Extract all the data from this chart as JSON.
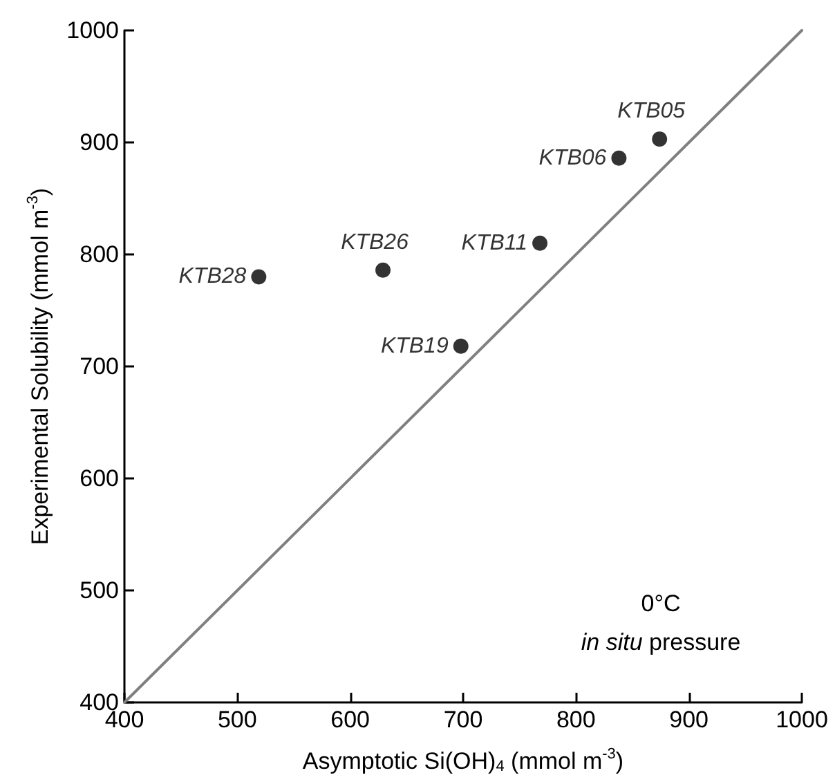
{
  "chart_data": {
    "type": "scatter",
    "xlabel": "Asymptotic Si(OH)$_{4}$ (mmol m$^{-3}$)",
    "ylabel": "Experimental Solubility (mmol m$^{-3}$)",
    "x": [
      874,
      838,
      768,
      629,
      519,
      698
    ],
    "series": [
      {
        "color": "#000000",
        "marker": "circle",
        "values": [
          903,
          886,
          810,
          786,
          780,
          718
        ]
      },
      {
        "type": "line",
        "color": "#808080",
        "marker": "none",
        "line_style": "solid",
        "x": [
          400,
          1000
        ],
        "values": [
          400,
          1000
        ]
      }
    ],
    "xlim": [
      400,
      1000
    ],
    "ylim": [
      400,
      1000
    ],
    "xticks": [
      400,
      500,
      600,
      700,
      800,
      900,
      1000
    ],
    "yticks": [
      400,
      500,
      600,
      700,
      800,
      900,
      1000
    ],
    "grid": false,
    "annotations": [
      {
        "text": "KTB05",
        "x": 874,
        "y": 903
      },
      {
        "text": "KTB06",
        "x": 838,
        "y": 886
      },
      {
        "text": "KTB11",
        "x": 768,
        "y": 810
      },
      {
        "text": "KTB26",
        "x": 629,
        "y": 786
      },
      {
        "text": "KTB28",
        "x": 519,
        "y": 780
      },
      {
        "text": "KTB19",
        "x": 698,
        "y": 718
      },
      "0°C",
      "in situ pressure"
    ]
  }
}
